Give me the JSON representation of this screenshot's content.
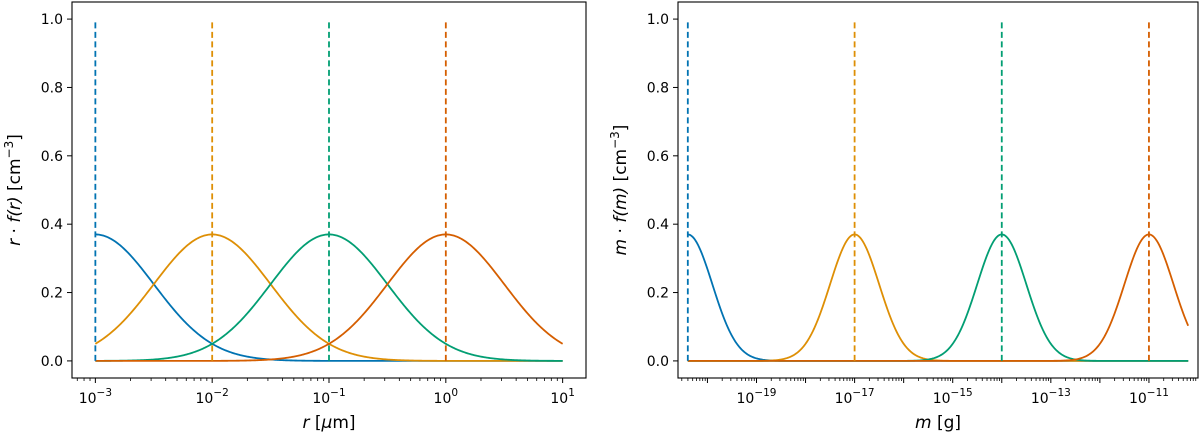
{
  "chart_data": [
    {
      "type": "line",
      "xscale": "log",
      "xlim_log10": [
        -3.2,
        1.2
      ],
      "ylim": [
        -0.05,
        1.05
      ],
      "xlabel": {
        "var": "r",
        "unit_prefix": " [",
        "unit_mu": "μ",
        "unit_rest": "m]"
      },
      "ylabel": {
        "var1": "r",
        "dot": " · ",
        "fn": "f",
        "arg": "(r)",
        "unit_open": " [cm",
        "unit_exp": "−3",
        "unit_close": "]"
      },
      "yticks": [
        {
          "value": 0.0,
          "label": "0.0"
        },
        {
          "value": 0.2,
          "label": "0.2"
        },
        {
          "value": 0.4,
          "label": "0.4"
        },
        {
          "value": 0.6,
          "label": "0.6"
        },
        {
          "value": 0.8,
          "label": "0.8"
        },
        {
          "value": 1.0,
          "label": "1.0"
        }
      ],
      "xticks": [
        {
          "exp": -3,
          "base": "10",
          "label": "−3"
        },
        {
          "exp": -2,
          "base": "10",
          "label": "−2"
        },
        {
          "exp": -1,
          "base": "10",
          "label": "−1"
        },
        {
          "exp": 0,
          "base": "10",
          "label": "0"
        },
        {
          "exp": 1,
          "base": "10",
          "label": "1"
        }
      ],
      "series": [
        {
          "name": "blue",
          "color": "#0173b2",
          "mode_log10": -3,
          "sigma_log10": 0.5,
          "peak": 0.37
        },
        {
          "name": "orange",
          "color": "#de8f05",
          "mode_log10": -2,
          "sigma_log10": 0.5,
          "peak": 0.37
        },
        {
          "name": "green",
          "color": "#029e73",
          "mode_log10": -1,
          "sigma_log10": 0.5,
          "peak": 0.37
        },
        {
          "name": "red",
          "color": "#d55e00",
          "mode_log10": 0,
          "sigma_log10": 0.5,
          "peak": 0.37
        }
      ],
      "curve_range_log10": [
        -3,
        1
      ],
      "vlines": [
        {
          "color": "#0173b2",
          "x_log10": -3,
          "ymax": 1.0
        },
        {
          "color": "#de8f05",
          "x_log10": -2,
          "ymax": 1.0
        },
        {
          "color": "#029e73",
          "x_log10": -1,
          "ymax": 1.0
        },
        {
          "color": "#d55e00",
          "x_log10": 0,
          "ymax": 1.0
        }
      ]
    },
    {
      "type": "line",
      "xscale": "log",
      "xlim_log10": [
        -20.6,
        -10.0
      ],
      "ylim": [
        -0.05,
        1.05
      ],
      "xlabel": {
        "var": "m",
        "unit_prefix": " [g]",
        "unit_mu": "",
        "unit_rest": ""
      },
      "ylabel": {
        "var1": "m",
        "dot": " · ",
        "fn": "f",
        "arg": "(m)",
        "unit_open": " [cm",
        "unit_exp": "−3",
        "unit_close": "]"
      },
      "yticks": [
        {
          "value": 0.0,
          "label": "0.0"
        },
        {
          "value": 0.2,
          "label": "0.2"
        },
        {
          "value": 0.4,
          "label": "0.4"
        },
        {
          "value": 0.6,
          "label": "0.6"
        },
        {
          "value": 0.8,
          "label": "0.8"
        },
        {
          "value": 1.0,
          "label": "1.0"
        }
      ],
      "xticks": [
        {
          "exp": -19,
          "base": "10",
          "label": "−19"
        },
        {
          "exp": -17,
          "base": "10",
          "label": "−17"
        },
        {
          "exp": -15,
          "base": "10",
          "label": "−15"
        },
        {
          "exp": -13,
          "base": "10",
          "label": "−13"
        },
        {
          "exp": -11,
          "base": "10",
          "label": "−11"
        }
      ],
      "series": [
        {
          "name": "blue",
          "color": "#0173b2",
          "mode_log10": -20.4,
          "sigma_log10": 0.5,
          "peak": 0.37
        },
        {
          "name": "orange",
          "color": "#de8f05",
          "mode_log10": -17.0,
          "sigma_log10": 0.5,
          "peak": 0.37
        },
        {
          "name": "green",
          "color": "#029e73",
          "mode_log10": -14.0,
          "sigma_log10": 0.5,
          "peak": 0.37
        },
        {
          "name": "red",
          "color": "#d55e00",
          "mode_log10": -11.0,
          "sigma_log10": 0.5,
          "peak": 0.37
        }
      ],
      "curve_range_log10": [
        -20.4,
        -10.2
      ],
      "vlines": [
        {
          "color": "#0173b2",
          "x_log10": -20.4,
          "ymax": 1.0
        },
        {
          "color": "#de8f05",
          "x_log10": -17.0,
          "ymax": 1.0
        },
        {
          "color": "#029e73",
          "x_log10": -14.0,
          "ymax": 1.0
        },
        {
          "color": "#d55e00",
          "x_log10": -11.0,
          "ymax": 1.0
        }
      ]
    }
  ]
}
